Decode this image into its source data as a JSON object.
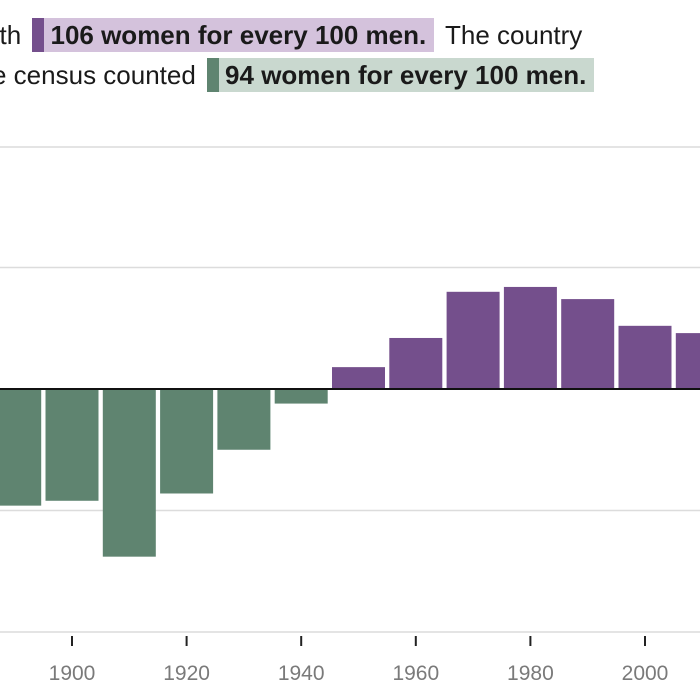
{
  "annotation": {
    "line1_prefix": "with",
    "women_highlight": "106 women for every 100 men.",
    "line1_suffix": "The country",
    "line2_prefix": "e census counted",
    "men_highlight": "94 women for every 100 men."
  },
  "colors": {
    "women_more": "#744f8c",
    "men_more": "#5f8470",
    "women_highlight_bg": "#d4c2dc",
    "men_highlight_bg": "#c9d8cf"
  },
  "chart_data": {
    "type": "bar",
    "baseline": 100,
    "ylim": [
      92,
      110
    ],
    "grid": true,
    "x": [
      1890,
      1900,
      1910,
      1920,
      1930,
      1940,
      1950,
      1960,
      1970,
      1980,
      1990,
      2000,
      2010
    ],
    "values": [
      95.2,
      95.4,
      93.1,
      95.7,
      97.5,
      99.4,
      100.9,
      102.1,
      104.0,
      104.2,
      103.7,
      102.6,
      102.3
    ],
    "tick_labels": [
      "1900",
      "1920",
      "1940",
      "1960",
      "1980",
      "2000"
    ],
    "tick_values": [
      1900,
      1920,
      1940,
      1960,
      1980,
      2000
    ]
  }
}
